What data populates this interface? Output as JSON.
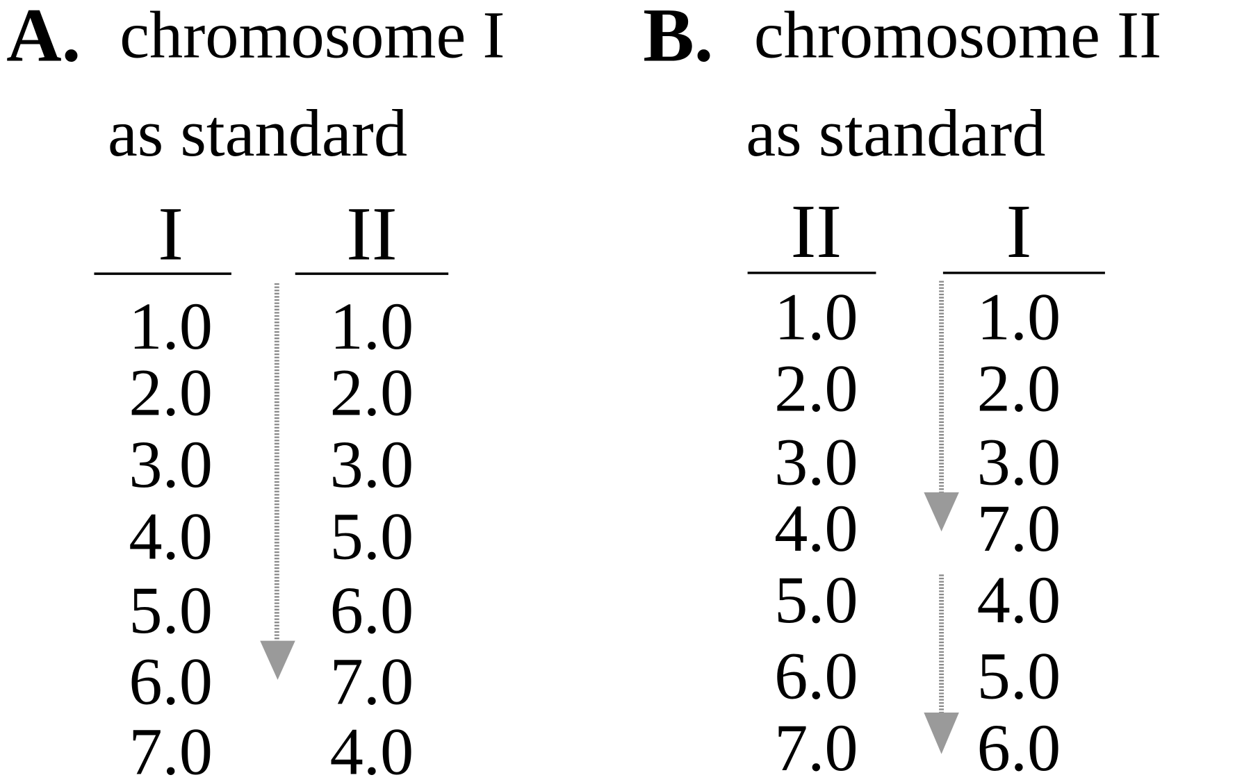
{
  "panels": [
    {
      "letter": "A.",
      "title": "chromosome I",
      "subtitle": "as standard",
      "columns": [
        {
          "header": "I",
          "values": [
            "1.0",
            "2.0",
            "3.0",
            "4.0",
            "5.0",
            "6.0",
            "7.0"
          ]
        },
        {
          "header": "II",
          "values": [
            "1.0",
            "2.0",
            "3.0",
            "5.0",
            "6.0",
            "7.0",
            "4.0"
          ]
        }
      ]
    },
    {
      "letter": "B.",
      "title": "chromosome II",
      "subtitle": "as standard",
      "columns": [
        {
          "header": "II",
          "values": [
            "1.0",
            "2.0",
            "3.0",
            "4.0",
            "5.0",
            "6.0",
            "7.0"
          ]
        },
        {
          "header": "I",
          "values": [
            "1.0",
            "2.0",
            "3.0",
            "7.0",
            "4.0",
            "5.0",
            "6.0"
          ]
        }
      ]
    }
  ]
}
